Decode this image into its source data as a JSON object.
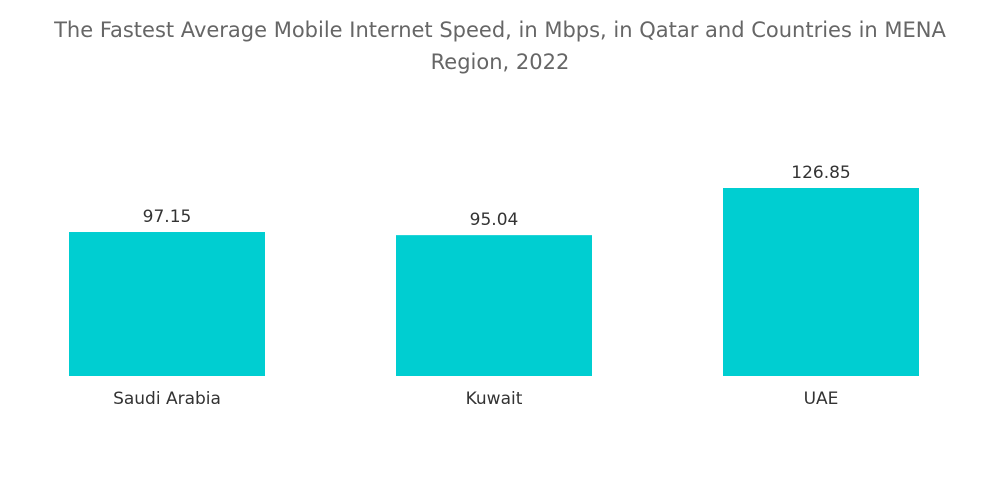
{
  "title": "The Fastest Average Mobile Internet Speed, in Mbps, in Qatar and Countries in MENA Region, 2022",
  "chart_data": {
    "type": "bar",
    "title": "The Fastest Average Mobile Internet Speed, in Mbps, in Qatar and Countries in MENA Region, 2022",
    "categories": [
      "Saudi Arabia",
      "Kuwait",
      "UAE"
    ],
    "values": [
      97.15,
      95.04,
      126.85
    ],
    "value_labels": [
      "97.15",
      "95.04",
      "126.85"
    ],
    "xlabel": "",
    "ylabel": "",
    "ylim": [
      0,
      126.85
    ],
    "grid": false,
    "legend": "none",
    "bar_color": "#00CED1"
  }
}
